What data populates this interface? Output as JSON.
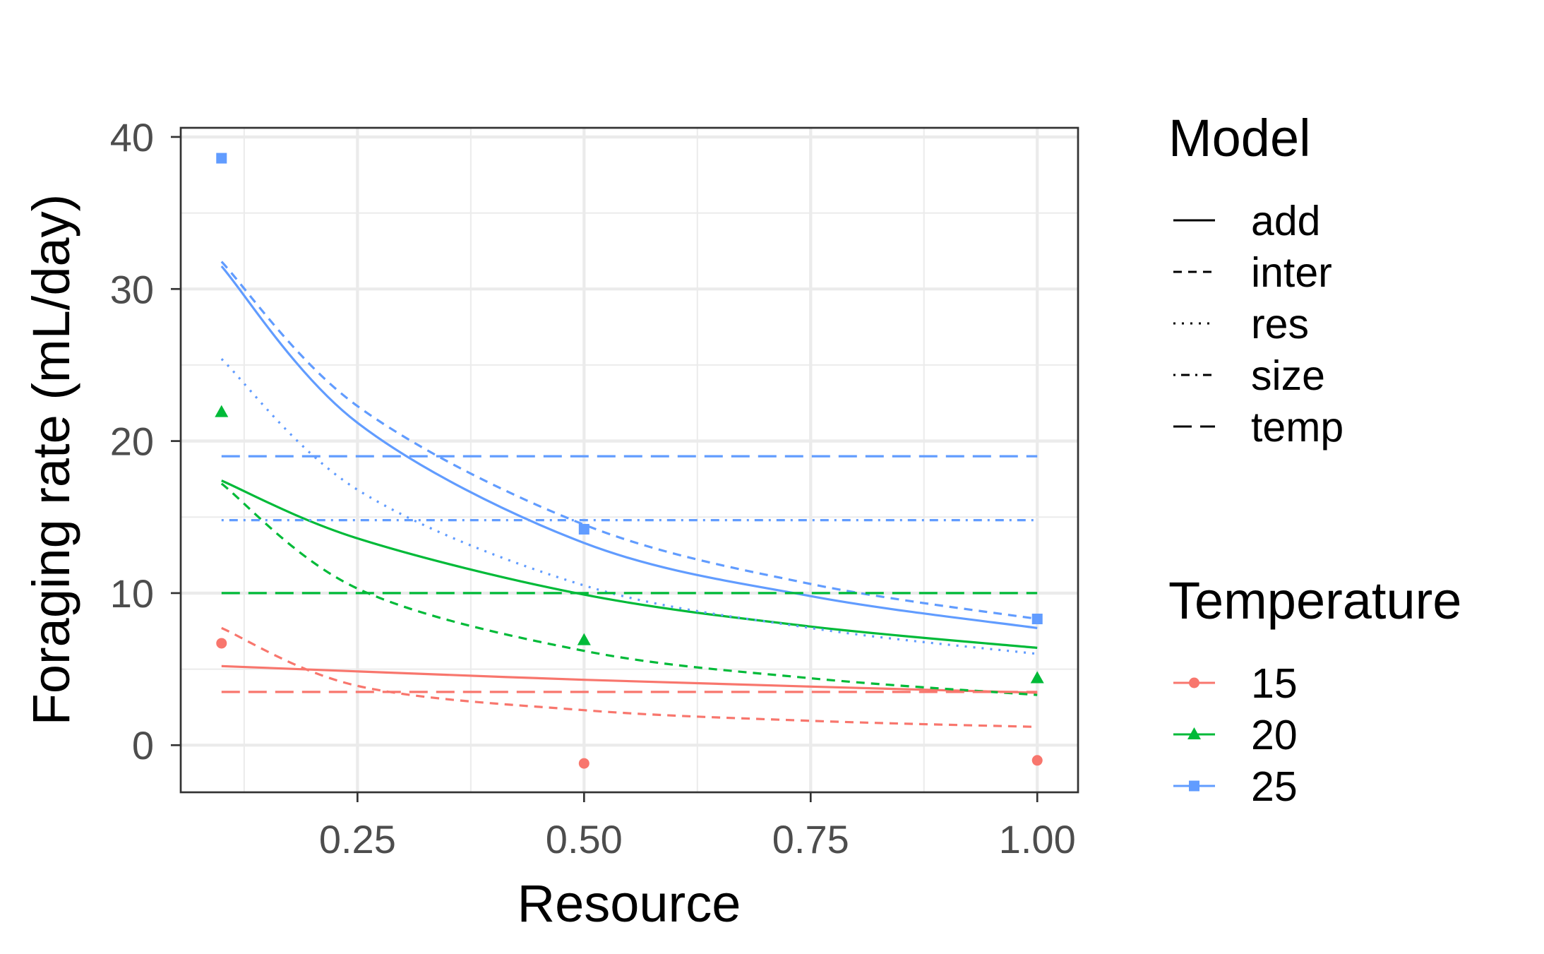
{
  "chart_data": {
    "type": "line",
    "xlabel": "Resource",
    "ylabel": "Foraging rate (mL/day)",
    "xlim": [
      0.055,
      1.045
    ],
    "ylim": [
      -3.1,
      40.6
    ],
    "x_ticks": [
      0.25,
      0.5,
      0.75,
      1.0
    ],
    "x_tick_labels": [
      "0.25",
      "0.50",
      "0.75",
      "1.00"
    ],
    "y_ticks": [
      0,
      10,
      20,
      30,
      40
    ],
    "y_tick_labels": [
      "0",
      "10",
      "20",
      "30",
      "40"
    ],
    "grid": true,
    "legend_position": "right",
    "legends": {
      "model": {
        "title": "Model",
        "entries": [
          {
            "label": "add",
            "dash": "solid"
          },
          {
            "label": "inter",
            "dash": "dashed"
          },
          {
            "label": "res",
            "dash": "dotted"
          },
          {
            "label": "size",
            "dash": "dotdash"
          },
          {
            "label": "temp",
            "dash": "longdash"
          }
        ]
      },
      "temperature": {
        "title": "Temperature",
        "entries": [
          {
            "label": "15",
            "color": "#F8766D",
            "shape": "circle"
          },
          {
            "label": "20",
            "color": "#00BA38",
            "shape": "triangle"
          },
          {
            "label": "25",
            "color": "#619CFF",
            "shape": "square"
          }
        ]
      }
    },
    "points": [
      {
        "temperature": "15",
        "x": 0.1,
        "y": 6.7
      },
      {
        "temperature": "15",
        "x": 0.5,
        "y": -1.2
      },
      {
        "temperature": "15",
        "x": 1.0,
        "y": -1.0
      },
      {
        "temperature": "20",
        "x": 0.1,
        "y": 21.9
      },
      {
        "temperature": "20",
        "x": 0.5,
        "y": 6.9
      },
      {
        "temperature": "20",
        "x": 1.0,
        "y": 4.4
      },
      {
        "temperature": "25",
        "x": 0.1,
        "y": 38.6
      },
      {
        "temperature": "25",
        "x": 0.5,
        "y": 14.2
      },
      {
        "temperature": "25",
        "x": 1.0,
        "y": 8.3
      }
    ],
    "series": [
      {
        "model": "add",
        "temperature": "15",
        "x": [
          0.1,
          0.25,
          0.5,
          0.75,
          1.0
        ],
        "y": [
          5.2,
          4.85,
          4.3,
          3.85,
          3.45
        ]
      },
      {
        "model": "add",
        "temperature": "20",
        "x": [
          0.1,
          0.25,
          0.5,
          0.75,
          1.0
        ],
        "y": [
          17.4,
          13.6,
          9.9,
          7.8,
          6.4
        ]
      },
      {
        "model": "add",
        "temperature": "25",
        "x": [
          0.1,
          0.25,
          0.5,
          0.75,
          1.0
        ],
        "y": [
          31.5,
          21.2,
          13.3,
          9.8,
          7.7
        ]
      },
      {
        "model": "inter",
        "temperature": "15",
        "x": [
          0.1,
          0.25,
          0.5,
          0.75,
          1.0
        ],
        "y": [
          7.7,
          3.9,
          2.3,
          1.6,
          1.2
        ]
      },
      {
        "model": "inter",
        "temperature": "20",
        "x": [
          0.1,
          0.25,
          0.5,
          0.75,
          1.0
        ],
        "y": [
          17.2,
          10.3,
          6.2,
          4.4,
          3.3
        ]
      },
      {
        "model": "inter",
        "temperature": "25",
        "x": [
          0.1,
          0.25,
          0.5,
          0.75,
          1.0
        ],
        "y": [
          31.8,
          22.3,
          14.5,
          10.6,
          8.3
        ]
      },
      {
        "model": "res",
        "temperature": "25",
        "x": [
          0.1,
          0.25,
          0.5,
          0.75,
          1.0
        ],
        "y": [
          25.4,
          16.8,
          10.5,
          7.7,
          6.0
        ]
      },
      {
        "model": "size",
        "temperature": "25",
        "x": [
          0.1,
          1.0
        ],
        "y": [
          14.8,
          14.8
        ]
      },
      {
        "model": "temp",
        "temperature": "15",
        "x": [
          0.1,
          1.0
        ],
        "y": [
          3.5,
          3.5
        ]
      },
      {
        "model": "temp",
        "temperature": "20",
        "x": [
          0.1,
          1.0
        ],
        "y": [
          10.0,
          10.0
        ]
      },
      {
        "model": "temp",
        "temperature": "25",
        "x": [
          0.1,
          1.0
        ],
        "y": [
          19.0,
          19.0
        ]
      }
    ]
  }
}
